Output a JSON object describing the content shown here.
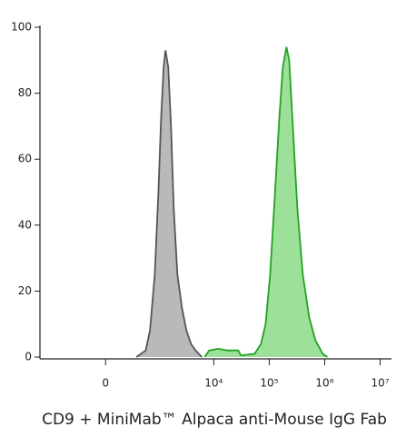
{
  "chart_data": {
    "type": "area",
    "title": "CD9 + MiniMab™ Alpaca anti-Mouse IgG Fab",
    "x_scale": "arcsinh",
    "xlim": [
      -1700,
      16000000
    ],
    "xticks": [
      0,
      {
        "value": 10000,
        "label": "10⁴"
      },
      {
        "value": 100000,
        "label": "10⁵"
      },
      {
        "value": 1000000,
        "label": "10⁶"
      },
      {
        "value": 10000000,
        "label": "10⁷"
      }
    ],
    "ylim": [
      0,
      100
    ],
    "yticks": [
      0,
      20,
      40,
      60,
      80,
      100
    ],
    "series": [
      {
        "color": "#b9b9b9",
        "line_color": "#555555",
        "x": [
          370,
          570,
          690,
          850,
          990,
          1110,
          1240,
          1340,
          1500,
          1690,
          1890,
          2200,
          2660,
          3220,
          3880,
          4690,
          6110
        ],
        "values": [
          0,
          2,
          8,
          25,
          50,
          72,
          88,
          93,
          88,
          70,
          45,
          25,
          15,
          8,
          4,
          2,
          0
        ]
      },
      {
        "color": "#9de09a",
        "line_color": "#22a322",
        "x": [
          6850,
          8270,
          12050,
          17580,
          27640,
          30980,
          54570,
          71140,
          85900,
          103700,
          125200,
          151200,
          175800,
          204300,
          228900,
          266100,
          321200,
          403000,
          524800,
          683600,
          923800,
          1115700
        ],
        "values": [
          0,
          2,
          2.5,
          2,
          2,
          0.5,
          1,
          4,
          10,
          25,
          48,
          72,
          88,
          94,
          90,
          70,
          45,
          25,
          12,
          5,
          1,
          0
        ]
      }
    ]
  }
}
